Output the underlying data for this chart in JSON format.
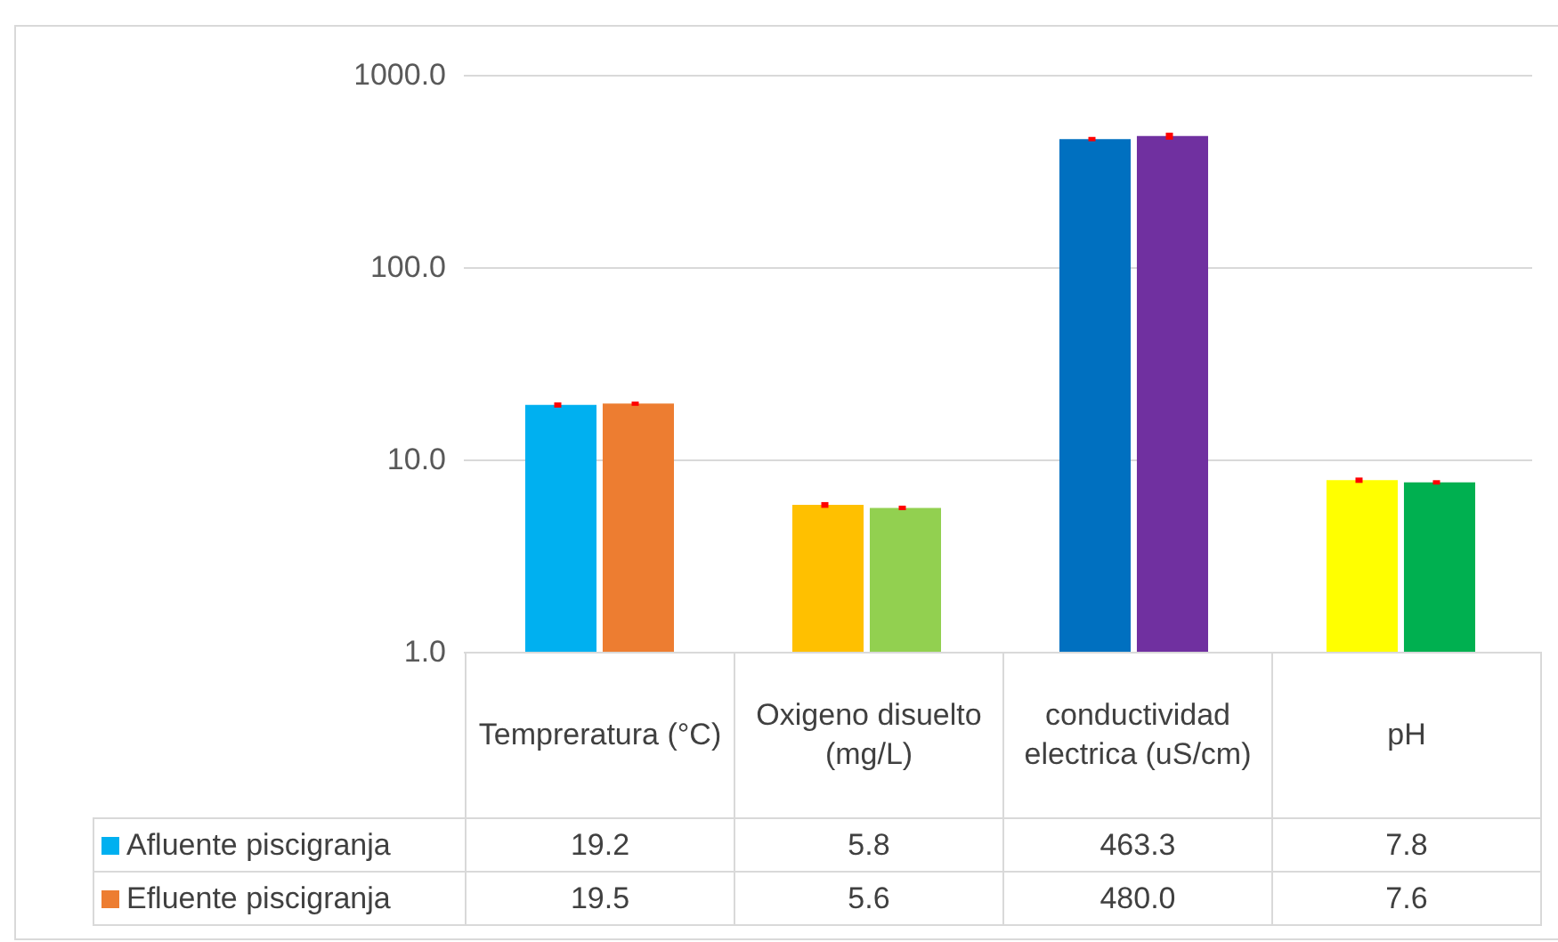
{
  "chart_data": {
    "type": "bar",
    "categories": [
      "Tempreratura (°C)",
      "Oxigeno disuelto (mg/L)",
      "conductividad electrica (uS/cm)",
      "pH"
    ],
    "series": [
      {
        "name": "Afluente piscigranja",
        "colors": [
          "#00b0f0",
          "#ffc000",
          "#0070c0",
          "#ffff00"
        ],
        "values": [
          19.2,
          5.8,
          463.3,
          7.8
        ],
        "value_labels": [
          "19.2",
          "5.8",
          "463.3",
          "7.8"
        ],
        "errors": [
          0.6,
          0.2,
          12,
          0.25
        ]
      },
      {
        "name": "Efluente piscigranja",
        "colors": [
          "#ed7d31",
          "#92d050",
          "#7030a0",
          "#00b050"
        ],
        "values": [
          19.5,
          5.6,
          480.0,
          7.6
        ],
        "value_labels": [
          "19.5",
          "5.6",
          "480.0",
          "7.6"
        ],
        "errors": [
          0.5,
          0.15,
          20,
          0.2
        ]
      }
    ],
    "log": true,
    "ylim": [
      1,
      1000
    ],
    "yticks": [
      {
        "value": 1,
        "label": "1.0"
      },
      {
        "value": 10,
        "label": "10.0"
      },
      {
        "value": 100,
        "label": "100.0"
      },
      {
        "value": 1000,
        "label": "1000.0"
      }
    ],
    "grid": true,
    "legend": "bottom"
  }
}
